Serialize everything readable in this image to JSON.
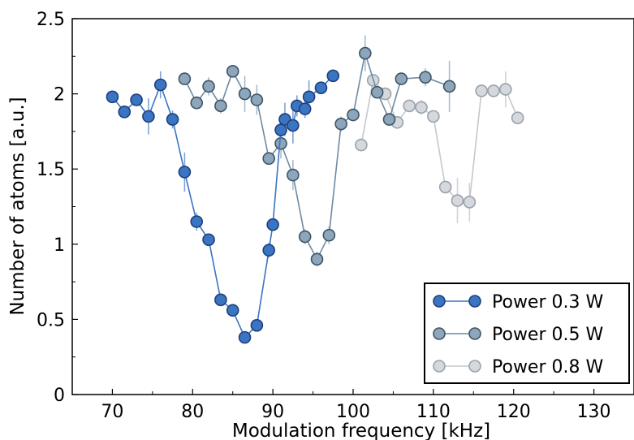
{
  "chart_data": {
    "type": "scatter",
    "xlabel": "Modulation frequency [kHz]",
    "ylabel": "Number of atoms [a.u.]",
    "xlim": [
      65,
      135
    ],
    "ylim": [
      0,
      2.5
    ],
    "x_ticks": [
      70,
      80,
      90,
      100,
      110,
      120,
      130
    ],
    "x_tick_labels": [
      "70",
      "80",
      "90",
      "100",
      "110",
      "120",
      "130"
    ],
    "y_ticks": [
      0,
      0.5,
      1,
      1.5,
      2,
      2.5
    ],
    "y_tick_labels": [
      "0",
      "0.5",
      "1",
      "1.5",
      "2",
      "2.5"
    ],
    "grid": false,
    "legend_position": "bottom-right",
    "series": [
      {
        "name": "Power 0.3 W",
        "color": "#3a75c4",
        "edge": "#1f3f7a",
        "line": "#3a75c4",
        "error_color": "#7fa3d6",
        "x": [
          70,
          71.5,
          73,
          74.5,
          76,
          77.5,
          79,
          80.5,
          82,
          83.5,
          85,
          86.5,
          88,
          89.5,
          90,
          91,
          91.5,
          92.5,
          93,
          94,
          94.5,
          96,
          97.5
        ],
        "y": [
          1.98,
          1.88,
          1.96,
          1.85,
          2.06,
          1.83,
          1.48,
          1.15,
          1.03,
          0.63,
          0.56,
          0.38,
          0.46,
          0.96,
          1.13,
          1.76,
          1.83,
          1.79,
          1.92,
          1.9,
          1.98,
          2.04,
          2.12
        ],
        "yerr": [
          0.03,
          0.04,
          0.03,
          0.12,
          0.09,
          0.06,
          0.13,
          0.06,
          0.03,
          0.03,
          0.03,
          0.04,
          0.03,
          0.05,
          0.04,
          0.05,
          0.11,
          0.12,
          0.07,
          0.06,
          0.11,
          0.04,
          0.03
        ]
      },
      {
        "name": "Power 0.5 W",
        "color": "#8ea6bb",
        "edge": "#3d5566",
        "line": "#6d8aa2",
        "error_color": "#a9bccc",
        "x": [
          79,
          80.5,
          82,
          83.5,
          85,
          86.5,
          88,
          89.5,
          91,
          92.5,
          94,
          95.5,
          97,
          98.5,
          100,
          101.5,
          103,
          104.5,
          106,
          109,
          112
        ],
        "y": [
          2.1,
          1.94,
          2.05,
          1.92,
          2.15,
          2.0,
          1.96,
          1.57,
          1.67,
          1.46,
          1.05,
          0.9,
          1.06,
          1.8,
          1.86,
          2.27,
          2.01,
          1.83,
          2.1,
          2.11,
          2.05
        ],
        "yerr": [
          0.04,
          0.04,
          0.06,
          0.05,
          0.04,
          0.12,
          0.1,
          0.04,
          0.1,
          0.1,
          0.05,
          0.05,
          0.06,
          0.05,
          0.04,
          0.12,
          0.04,
          0.04,
          0.04,
          0.06,
          0.17
        ]
      },
      {
        "name": "Power 0.8 W",
        "color": "#d5d9dd",
        "edge": "#9aa2aa",
        "line": "#c4c8cc",
        "error_color": "#cfd3d7",
        "x": [
          101,
          102.5,
          104,
          105.5,
          107,
          108.5,
          110,
          111.5,
          113,
          114.5,
          116,
          117.5,
          119,
          120.5
        ],
        "y": [
          1.66,
          2.09,
          2.0,
          1.81,
          1.92,
          1.91,
          1.85,
          1.38,
          1.29,
          1.28,
          2.02,
          2.02,
          2.03,
          1.84
        ],
        "yerr": [
          0.03,
          0.04,
          0.03,
          0.03,
          0.04,
          0.05,
          0.04,
          0.04,
          0.15,
          0.13,
          0.04,
          0.04,
          0.12,
          0.03
        ]
      }
    ]
  }
}
